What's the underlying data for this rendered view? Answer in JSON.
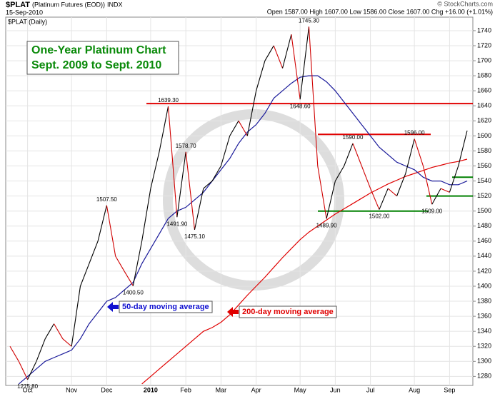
{
  "header": {
    "symbol": "$PLAT",
    "name": "(Platinum Futures (EOD))",
    "exchange": "INDX",
    "date": "15-Sep-2010",
    "quote": "Open 1587.00 High 1607.00 Low 1586.00 Close 1607.00 Chg +16.00 (+1.01%)",
    "credit": "© StockCharts.com"
  },
  "chart_data": {
    "type": "line",
    "title": "One-Year Platinum Chart",
    "subtitle": "Sept. 2009 to Sept. 2010",
    "categories": [
      null,
      null,
      "Oct",
      null,
      null,
      null,
      null,
      "Nov",
      null,
      null,
      null,
      "Dec",
      null,
      null,
      null,
      null,
      "2010",
      null,
      null,
      null,
      "Feb",
      null,
      null,
      null,
      "Mar",
      null,
      null,
      null,
      "Apr",
      null,
      null,
      null,
      null,
      "May",
      null,
      null,
      null,
      "Jun",
      null,
      null,
      null,
      "Jul",
      null,
      null,
      null,
      null,
      "Aug",
      null,
      null,
      null,
      "Sep",
      null,
      null
    ],
    "series": [
      {
        "name": "$PLAT (Daily)",
        "up_color": "#000000",
        "down_color": "#d00000",
        "values": [
          1320,
          1300,
          1275.8,
          1300,
          1330,
          1350,
          1330,
          1320,
          1400,
          1430,
          1460,
          1507.5,
          1440,
          1420,
          1400.5,
          1460,
          1530,
          1580,
          1639.3,
          1491.9,
          1578.7,
          1475.1,
          1530,
          1540,
          1560,
          1600,
          1620,
          1600,
          1660,
          1700,
          1720,
          1690,
          1735,
          1648.6,
          1745.3,
          1560,
          1489.9,
          1540,
          1560,
          1590,
          1560,
          1530,
          1502,
          1530,
          1520,
          1550,
          1596,
          1560,
          1509,
          1530,
          1525,
          1560,
          1607
        ],
        "value_labels": [
          null,
          null,
          "1275.80",
          null,
          null,
          null,
          null,
          null,
          null,
          null,
          null,
          "1507.50",
          null,
          null,
          "1400.50",
          null,
          null,
          null,
          "1639.30",
          "1491.90",
          "1578.70",
          "1475.10",
          null,
          null,
          null,
          null,
          null,
          null,
          null,
          null,
          null,
          null,
          null,
          "1648.60",
          "1745.30",
          null,
          "1489.90",
          null,
          null,
          "1590.00",
          null,
          null,
          "1502.00",
          null,
          null,
          null,
          "1596.00",
          null,
          "1509.00",
          null,
          null,
          null,
          null
        ]
      },
      {
        "name": "50-day moving average",
        "color": "#1a1a9a",
        "values": [
          null,
          1270,
          1280,
          1290,
          1300,
          1305,
          1310,
          1315,
          1330,
          1350,
          1365,
          1380,
          1385,
          1395,
          1405,
          1430,
          1450,
          1470,
          1490,
          1500,
          1505,
          1515,
          1525,
          1540,
          1555,
          1570,
          1590,
          1605,
          1615,
          1630,
          1650,
          1660,
          1670,
          1678,
          1680,
          1680,
          1672,
          1660,
          1645,
          1630,
          1615,
          1600,
          1585,
          1575,
          1565,
          1560,
          1555,
          1545,
          1540,
          1540,
          1535,
          1535,
          1540
        ]
      },
      {
        "name": "200-day moving average",
        "color": "#e00000",
        "values": [
          null,
          null,
          null,
          null,
          null,
          null,
          null,
          null,
          null,
          null,
          null,
          null,
          null,
          null,
          null,
          1270,
          1280,
          1290,
          1300,
          1310,
          1320,
          1330,
          1340,
          1345,
          1352,
          1362,
          1375,
          1388,
          1400,
          1412,
          1425,
          1438,
          1450,
          1462,
          1472,
          1480,
          1488,
          1496,
          1503,
          1510,
          1517,
          1524,
          1530,
          1536,
          1541,
          1546,
          1550,
          1554,
          1558,
          1561,
          1564,
          1566,
          1569
        ]
      }
    ],
    "levels": [
      {
        "value": 1643,
        "color": "#e00000"
      },
      {
        "value": 1602,
        "color": "#e00000"
      },
      {
        "value": 1500,
        "color": "#008000"
      },
      {
        "value": 1520,
        "color": "#008000"
      },
      {
        "value": 1545,
        "color": "#008000"
      }
    ],
    "ylim": [
      1268,
      1758
    ],
    "yticks": [
      1280,
      1300,
      1320,
      1340,
      1360,
      1380,
      1400,
      1420,
      1440,
      1460,
      1480,
      1500,
      1520,
      1540,
      1560,
      1580,
      1600,
      1620,
      1640,
      1660,
      1680,
      1700,
      1720,
      1740
    ],
    "grid": true
  }
}
